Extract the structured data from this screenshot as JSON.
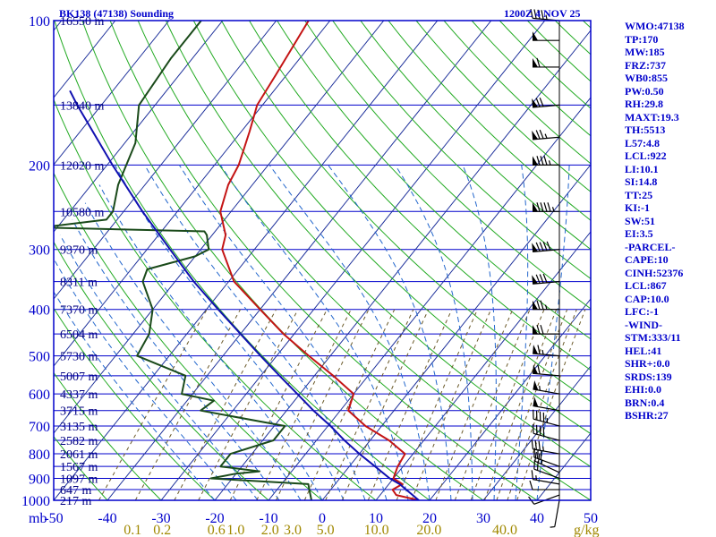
{
  "header": {
    "station": "BK138 (47138) Sounding",
    "time": "1200Z  4 NOV 25"
  },
  "colors": {
    "frame": "#0000cc",
    "isotherm": "#1a2d99",
    "dry_adiabat": "#22aa22",
    "moist_adiabat": "#2266cc",
    "mixing_ratio": "#6b5a2a",
    "temperature": "#c41414",
    "dewpoint": "#1a4a1a",
    "parcel": "#1010b0",
    "wind": "#000000"
  },
  "indices": [
    "WMO:47138",
    "TP:170",
    "MW:185",
    "FRZ:737",
    "WB0:855",
    "PW:0.50",
    "RH:29.8",
    "MAXT:19.3",
    "TH:5513",
    "L57:4.8",
    "LCL:922",
    "LI:10.1",
    "SI:14.8",
    "TT:25",
    "KI:-1",
    "SW:51",
    "EI:3.5",
    "-PARCEL-",
    "CAPE:10",
    "CINH:52376",
    "LCL:867",
    "CAP:10.0",
    "LFC:-1",
    "-WIND-",
    "STM:333/11",
    "HEL:41",
    "SHR+:0.0",
    "SRDS:139",
    "EHI:0.0",
    "BRN:0.4",
    "BSHR:27"
  ],
  "chart_data": {
    "type": "line",
    "title": "BK138 (47138) Sounding",
    "subtitle": "1200Z  4 NOV 25",
    "plot": "skew-T log-p",
    "xlabel": "",
    "ylabel": "mb",
    "pressure_axis": {
      "scale": "log",
      "range": [
        1000,
        100
      ]
    },
    "temperature_axis": {
      "range": [
        -50,
        50
      ]
    },
    "pressure_ticks": [
      {
        "p": 100,
        "label": "100"
      },
      {
        "p": 200,
        "label": "200"
      },
      {
        "p": 300,
        "label": "300"
      },
      {
        "p": 400,
        "label": "400"
      },
      {
        "p": 500,
        "label": "500"
      },
      {
        "p": 600,
        "label": "600"
      },
      {
        "p": 700,
        "label": "700"
      },
      {
        "p": 800,
        "label": "800"
      },
      {
        "p": 900,
        "label": "900"
      },
      {
        "p": 1000,
        "label": "1000"
      }
    ],
    "height_levels": [
      {
        "p": 100,
        "label": "16550 m"
      },
      {
        "p": 150,
        "label": "13840 m"
      },
      {
        "p": 200,
        "label": "12020 m"
      },
      {
        "p": 250,
        "label": "10580 m"
      },
      {
        "p": 300,
        "label": "9370 m"
      },
      {
        "p": 350,
        "label": "8311 m"
      },
      {
        "p": 400,
        "label": "7370 m"
      },
      {
        "p": 450,
        "label": "6504 m"
      },
      {
        "p": 500,
        "label": "5730 m"
      },
      {
        "p": 550,
        "label": "5007 m"
      },
      {
        "p": 600,
        "label": "4337 m"
      },
      {
        "p": 650,
        "label": "3715 m"
      },
      {
        "p": 700,
        "label": "3135 m"
      },
      {
        "p": 750,
        "label": "2582 m"
      },
      {
        "p": 800,
        "label": "2061 m"
      },
      {
        "p": 850,
        "label": "1567 m"
      },
      {
        "p": 900,
        "label": "1097 m"
      },
      {
        "p": 950,
        "label": "647 m"
      },
      {
        "p": 1000,
        "label": "217 m"
      }
    ],
    "temperature_ticks": [
      {
        "t": -50,
        "label": "-50"
      },
      {
        "t": -40,
        "label": "-40"
      },
      {
        "t": -30,
        "label": "-30"
      },
      {
        "t": -20,
        "label": "-20"
      },
      {
        "t": -10,
        "label": "-10"
      },
      {
        "t": 0,
        "label": "0"
      },
      {
        "t": 10,
        "label": "10"
      },
      {
        "t": 20,
        "label": "20"
      },
      {
        "t": 30,
        "label": "30"
      },
      {
        "t": 40,
        "label": "40"
      },
      {
        "t": 50,
        "label": "50"
      }
    ],
    "x_axis_label_prefix": "mb",
    "mixing_ratio_ticks": [
      {
        "t": -35.3,
        "label": "0.1"
      },
      {
        "t": -29.8,
        "label": "0.2"
      },
      {
        "t": -19.7,
        "label": "0.6"
      },
      {
        "t": -16.1,
        "label": "1.0"
      },
      {
        "t": -9.7,
        "label": "2.0"
      },
      {
        "t": -5.5,
        "label": "3.0"
      },
      {
        "t": 0.6,
        "label": "5.0"
      },
      {
        "t": 10.1,
        "label": "10.0"
      },
      {
        "t": 19.9,
        "label": "20.0"
      },
      {
        "t": 34.0,
        "label": "40.0"
      }
    ],
    "mixing_ratio_unit": "g/kg",
    "series": [
      {
        "key": "temperature",
        "data": [
          [
            1000,
            18.0
          ],
          [
            975,
            13.0
          ],
          [
            950,
            11.5
          ],
          [
            925,
            12.5
          ],
          [
            900,
            10.0
          ],
          [
            850,
            9.0
          ],
          [
            800,
            8.5
          ],
          [
            750,
            3.5
          ],
          [
            700,
            -3.0
          ],
          [
            650,
            -8.5
          ],
          [
            600,
            -10.0
          ],
          [
            550,
            -16.5
          ],
          [
            500,
            -24.0
          ],
          [
            450,
            -32.0
          ],
          [
            400,
            -40.0
          ],
          [
            350,
            -49.0
          ],
          [
            300,
            -56.0
          ],
          [
            280,
            -57.5
          ],
          [
            250,
            -62.0
          ],
          [
            220,
            -64.5
          ],
          [
            200,
            -65.5
          ],
          [
            170,
            -68.5
          ],
          [
            150,
            -71.0
          ],
          [
            130,
            -72.0
          ],
          [
            100,
            -74.0
          ]
        ]
      },
      {
        "key": "dewpoint",
        "data": [
          [
            1000,
            -2.0
          ],
          [
            950,
            -4.0
          ],
          [
            925,
            -5.0
          ],
          [
            900,
            -24.0
          ],
          [
            880,
            -20.0
          ],
          [
            870,
            -16.0
          ],
          [
            850,
            -24.0
          ],
          [
            800,
            -24.0
          ],
          [
            750,
            -18.0
          ],
          [
            700,
            -18.0
          ],
          [
            650,
            -36.0
          ],
          [
            620,
            -35.0
          ],
          [
            600,
            -42.0
          ],
          [
            550,
            -44.0
          ],
          [
            500,
            -56.0
          ],
          [
            450,
            -57.0
          ],
          [
            400,
            -60.0
          ],
          [
            350,
            -66.0
          ],
          [
            330,
            -67.0
          ],
          [
            310,
            -60.0
          ],
          [
            300,
            -58.5
          ],
          [
            280,
            -61.0
          ],
          [
            275,
            -62.0
          ],
          [
            270,
            -93.0
          ],
          [
            260,
            -82.0
          ],
          [
            250,
            -82.0
          ],
          [
            220,
            -85.0
          ],
          [
            180,
            -88.0
          ],
          [
            150,
            -93.0
          ],
          [
            120,
            -94.0
          ],
          [
            100,
            -94.0
          ]
        ]
      },
      {
        "key": "parcel",
        "data": [
          [
            1000,
            18.0
          ],
          [
            925,
            12.0
          ],
          [
            900,
            9.3
          ],
          [
            850,
            4.8
          ],
          [
            800,
            0.0
          ],
          [
            750,
            -4.8
          ],
          [
            700,
            -9.5
          ],
          [
            650,
            -15.0
          ],
          [
            600,
            -20.5
          ],
          [
            550,
            -26.5
          ],
          [
            500,
            -33.0
          ],
          [
            450,
            -40.0
          ],
          [
            400,
            -47.8
          ],
          [
            350,
            -56.5
          ],
          [
            300,
            -65.7
          ],
          [
            250,
            -76.5
          ],
          [
            200,
            -89.0
          ],
          [
            150,
            -104.5
          ],
          [
            140,
            -108.0
          ]
        ]
      }
    ],
    "wind_barbs": [
      {
        "p": 1000,
        "dir": 190,
        "spd": 5
      },
      {
        "p": 975,
        "dir": 250,
        "spd": 10
      },
      {
        "p": 950,
        "dir": 270,
        "spd": 10
      },
      {
        "p": 925,
        "dir": 280,
        "spd": 15
      },
      {
        "p": 900,
        "dir": 290,
        "spd": 20
      },
      {
        "p": 875,
        "dir": 295,
        "spd": 25
      },
      {
        "p": 850,
        "dir": 290,
        "spd": 30
      },
      {
        "p": 800,
        "dir": 280,
        "spd": 35
      },
      {
        "p": 750,
        "dir": 285,
        "spd": 40
      },
      {
        "p": 700,
        "dir": 285,
        "spd": 45
      },
      {
        "p": 650,
        "dir": 280,
        "spd": 50
      },
      {
        "p": 600,
        "dir": 280,
        "spd": 55
      },
      {
        "p": 550,
        "dir": 275,
        "spd": 60
      },
      {
        "p": 500,
        "dir": 275,
        "spd": 65
      },
      {
        "p": 450,
        "dir": 270,
        "spd": 70
      },
      {
        "p": 400,
        "dir": 270,
        "spd": 75
      },
      {
        "p": 350,
        "dir": 265,
        "spd": 80
      },
      {
        "p": 300,
        "dir": 265,
        "spd": 90
      },
      {
        "p": 250,
        "dir": 270,
        "spd": 95
      },
      {
        "p": 200,
        "dir": 270,
        "spd": 85
      },
      {
        "p": 175,
        "dir": 265,
        "spd": 75
      },
      {
        "p": 150,
        "dir": 265,
        "spd": 70
      },
      {
        "p": 125,
        "dir": 270,
        "spd": 60
      },
      {
        "p": 110,
        "dir": 270,
        "spd": 50
      },
      {
        "p": 100,
        "dir": 275,
        "spd": 45
      }
    ],
    "grid": true
  }
}
